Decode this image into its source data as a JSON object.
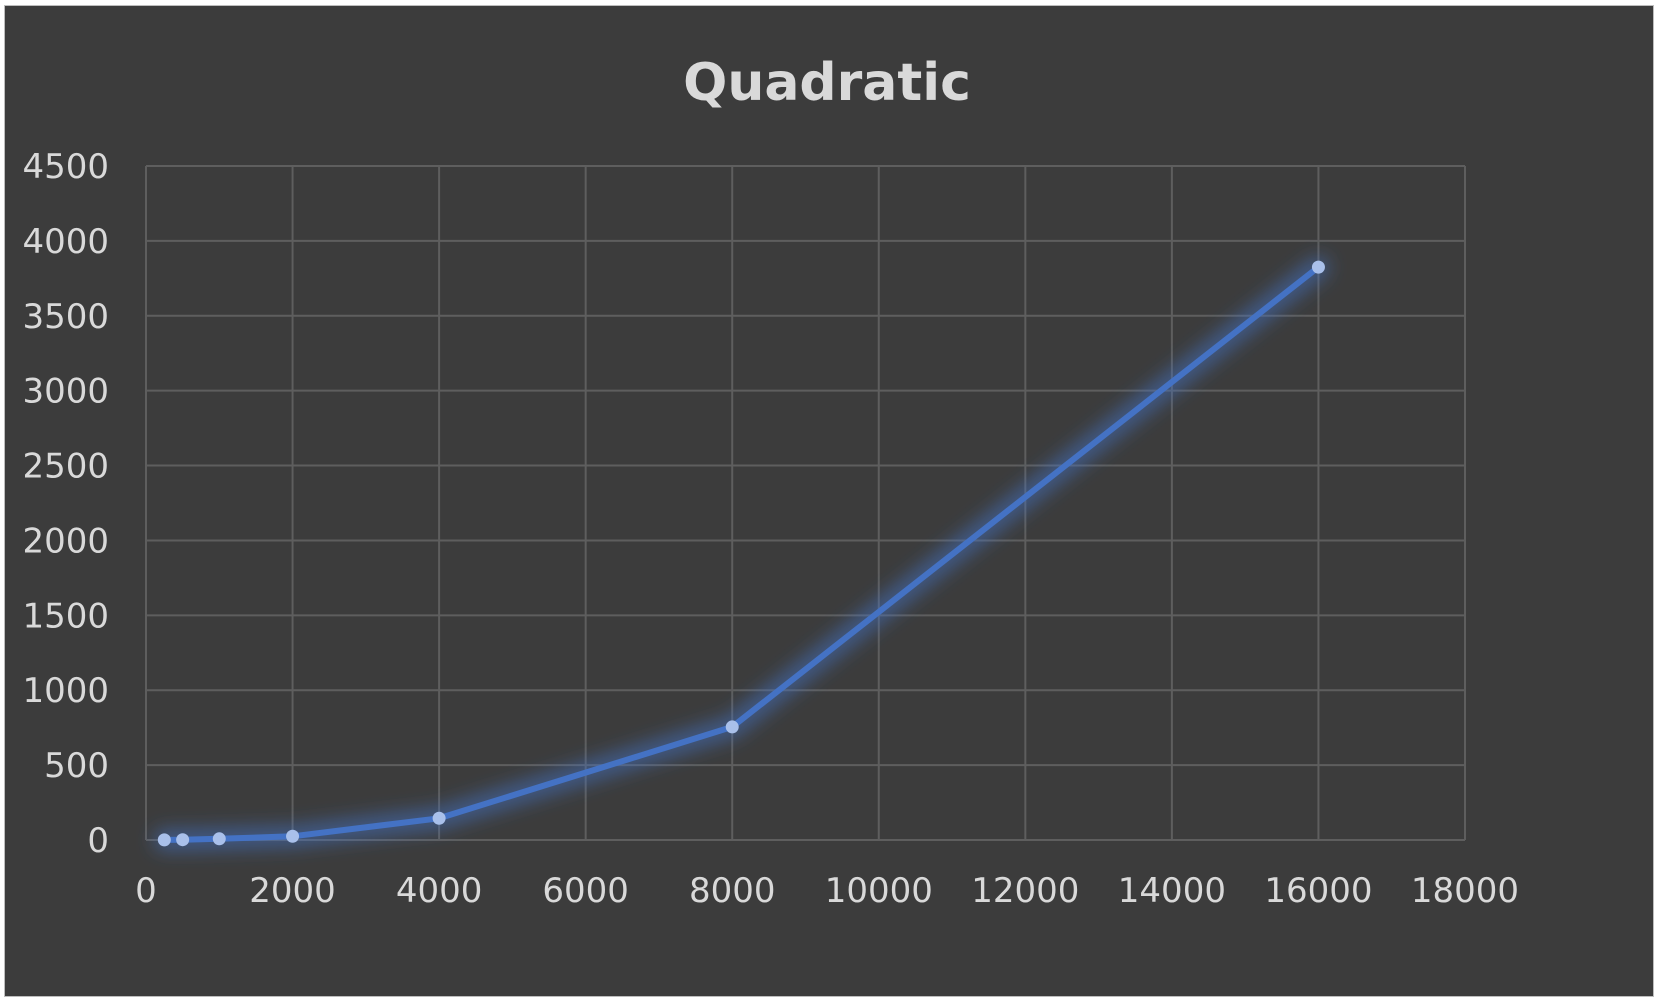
{
  "chart_data": {
    "type": "scatter",
    "title": "Quadratic",
    "xlabel": "",
    "ylabel": "",
    "xlim": [
      0,
      18000
    ],
    "ylim": [
      0,
      4500
    ],
    "x_ticks": [
      "0",
      "2000",
      "4000",
      "6000",
      "8000",
      "10000",
      "12000",
      "14000",
      "16000",
      "18000"
    ],
    "y_ticks": [
      "0",
      "500",
      "1000",
      "1500",
      "2000",
      "2500",
      "3000",
      "3500",
      "4000",
      "4500"
    ],
    "grid": true,
    "legend": "none",
    "line_style": "straight lines with markers",
    "series": [
      {
        "x": [
          250,
          500,
          1000,
          2000,
          4000,
          8000,
          16000
        ],
        "y": [
          1,
          2,
          8,
          25,
          145,
          755,
          3825
        ]
      }
    ],
    "colors": {
      "background": "#3c3c3c",
      "line": "#4472c4",
      "marker": "#a9c0ea",
      "grid": "#5e5e5e",
      "text": "#d9d9d9"
    }
  }
}
